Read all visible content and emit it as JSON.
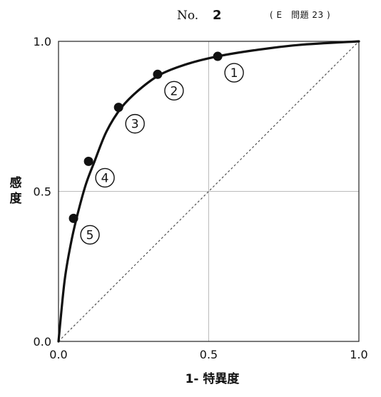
{
  "header": {
    "no_label": "No.",
    "no_value": "2",
    "ref": "( E　問題 23 )"
  },
  "chart_data": {
    "type": "line",
    "xlabel": "1- 特異度",
    "ylabel": "感度",
    "xlim": [
      0,
      1
    ],
    "ylim": [
      0,
      1
    ],
    "x_ticks": [
      "0.0",
      "0.5",
      "1.0"
    ],
    "y_ticks": [
      "0.0",
      "0.5",
      "1.0"
    ],
    "grid": true,
    "reference_line": {
      "from": [
        0,
        0
      ],
      "to": [
        1,
        1
      ],
      "style": "dashed"
    },
    "curve": {
      "x": [
        0,
        0.02,
        0.04,
        0.06,
        0.09,
        0.12,
        0.16,
        0.21,
        0.27,
        0.34,
        0.43,
        0.53,
        0.65,
        0.8,
        1.0
      ],
      "y": [
        0,
        0.2,
        0.32,
        0.41,
        0.52,
        0.6,
        0.7,
        0.78,
        0.84,
        0.89,
        0.925,
        0.95,
        0.97,
        0.988,
        1.0
      ]
    },
    "points": [
      {
        "label": "①",
        "x": 0.53,
        "y": 0.95
      },
      {
        "label": "②",
        "x": 0.33,
        "y": 0.89
      },
      {
        "label": "③",
        "x": 0.2,
        "y": 0.78
      },
      {
        "label": "④",
        "x": 0.1,
        "y": 0.6
      },
      {
        "label": "⑤",
        "x": 0.05,
        "y": 0.41
      }
    ]
  }
}
